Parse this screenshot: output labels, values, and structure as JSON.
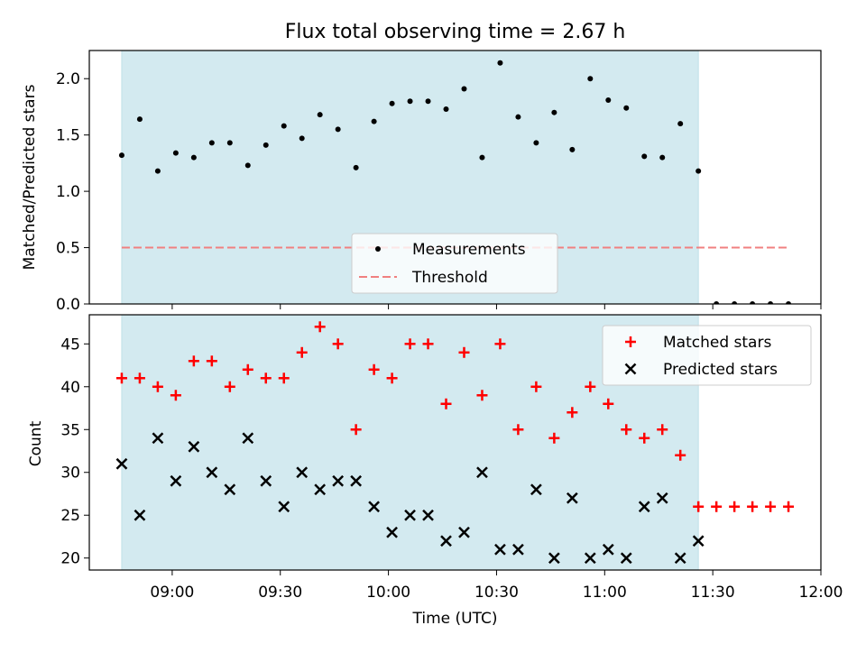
{
  "title": "Flux total observing time = 2.67 h",
  "chart_data": [
    {
      "type": "scatter",
      "panel": "top",
      "ylabel": "Matched/Predicted stars",
      "ylim": [
        0,
        2.25
      ],
      "yticks": [
        0.0,
        0.5,
        1.0,
        1.5,
        2.0
      ],
      "ytick_labels": [
        "0.0",
        "0.5",
        "1.0",
        "1.5",
        "2.0"
      ],
      "xlim": [
        "08:37",
        "12:00"
      ],
      "observing_window": [
        "08:46",
        "11:26"
      ],
      "observing_window_color": "#d3eaf0",
      "legend_position": "lower center",
      "legend": [
        "Measurements",
        "Threshold"
      ],
      "threshold": {
        "name": "Threshold",
        "value": 0.5,
        "x_range": [
          "08:46",
          "11:51"
        ],
        "color": "#f08080",
        "style": "dashed"
      },
      "series": [
        {
          "name": "Measurements",
          "marker": "dot",
          "color": "#000000",
          "x": [
            "08:46",
            "08:51",
            "08:56",
            "09:01",
            "09:06",
            "09:11",
            "09:16",
            "09:21",
            "09:26",
            "09:31",
            "09:36",
            "09:41",
            "09:46",
            "09:51",
            "09:56",
            "10:01",
            "10:06",
            "10:11",
            "10:16",
            "10:21",
            "10:26",
            "10:31",
            "10:36",
            "10:41",
            "10:46",
            "10:51",
            "10:56",
            "11:01",
            "11:06",
            "11:11",
            "11:16",
            "11:21",
            "11:26",
            "11:31",
            "11:36",
            "11:41",
            "11:46",
            "11:51"
          ],
          "y": [
            1.32,
            1.64,
            1.18,
            1.34,
            1.3,
            1.43,
            1.43,
            1.23,
            1.41,
            1.58,
            1.47,
            1.68,
            1.55,
            1.21,
            1.62,
            1.78,
            1.8,
            1.8,
            1.73,
            1.91,
            1.3,
            2.14,
            1.66,
            1.43,
            1.7,
            1.37,
            2.0,
            1.81,
            1.74,
            1.31,
            1.3,
            1.6,
            1.18,
            0,
            0,
            0,
            0,
            0
          ]
        }
      ]
    },
    {
      "type": "scatter",
      "panel": "bottom",
      "ylabel": "Count",
      "xlabel": "Time (UTC)",
      "ylim": [
        18.6,
        48.4
      ],
      "yticks": [
        20,
        25,
        30,
        35,
        40,
        45
      ],
      "ytick_labels": [
        "20",
        "25",
        "30",
        "35",
        "40",
        "45"
      ],
      "xlim": [
        "08:37",
        "12:00"
      ],
      "xticks": [
        "09:00",
        "09:30",
        "10:00",
        "10:30",
        "11:00",
        "11:30",
        "12:00"
      ],
      "xtick_labels": [
        "09:00",
        "09:30",
        "10:00",
        "10:30",
        "11:00",
        "11:30",
        "12:00"
      ],
      "observing_window": [
        "08:46",
        "11:26"
      ],
      "legend_position": "upper right",
      "legend": [
        "Matched stars",
        "Predicted stars"
      ],
      "series": [
        {
          "name": "Matched stars",
          "marker": "plus",
          "color": "#ff0000",
          "x": [
            "08:46",
            "08:51",
            "08:56",
            "09:01",
            "09:06",
            "09:11",
            "09:16",
            "09:21",
            "09:26",
            "09:31",
            "09:36",
            "09:41",
            "09:46",
            "09:51",
            "09:56",
            "10:01",
            "10:06",
            "10:11",
            "10:16",
            "10:21",
            "10:26",
            "10:31",
            "10:36",
            "10:41",
            "10:46",
            "10:51",
            "10:56",
            "11:01",
            "11:06",
            "11:11",
            "11:16",
            "11:21",
            "11:26",
            "11:31",
            "11:36",
            "11:41",
            "11:46",
            "11:51"
          ],
          "y": [
            41,
            41,
            40,
            39,
            43,
            43,
            40,
            42,
            41,
            41,
            44,
            47,
            45,
            35,
            42,
            41,
            45,
            45,
            38,
            44,
            39,
            45,
            35,
            40,
            34,
            37,
            40,
            38,
            35,
            34,
            35,
            32,
            26,
            26,
            26,
            26,
            26,
            26
          ]
        },
        {
          "name": "Predicted stars",
          "marker": "x",
          "color": "#000000",
          "x": [
            "08:46",
            "08:51",
            "08:56",
            "09:01",
            "09:06",
            "09:11",
            "09:16",
            "09:21",
            "09:26",
            "09:31",
            "09:36",
            "09:41",
            "09:46",
            "09:51",
            "09:56",
            "10:01",
            "10:06",
            "10:11",
            "10:16",
            "10:21",
            "10:26",
            "10:31",
            "10:36",
            "10:41",
            "10:46",
            "10:51",
            "10:56",
            "11:01",
            "11:06",
            "11:11",
            "11:16",
            "11:21",
            "11:26"
          ],
          "y": [
            31,
            25,
            34,
            29,
            33,
            30,
            28,
            34,
            29,
            26,
            30,
            28,
            29,
            29,
            26,
            23,
            25,
            25,
            22,
            23,
            30,
            21,
            21,
            28,
            20,
            27,
            20,
            21,
            20,
            26,
            27,
            20,
            22
          ]
        }
      ]
    }
  ]
}
